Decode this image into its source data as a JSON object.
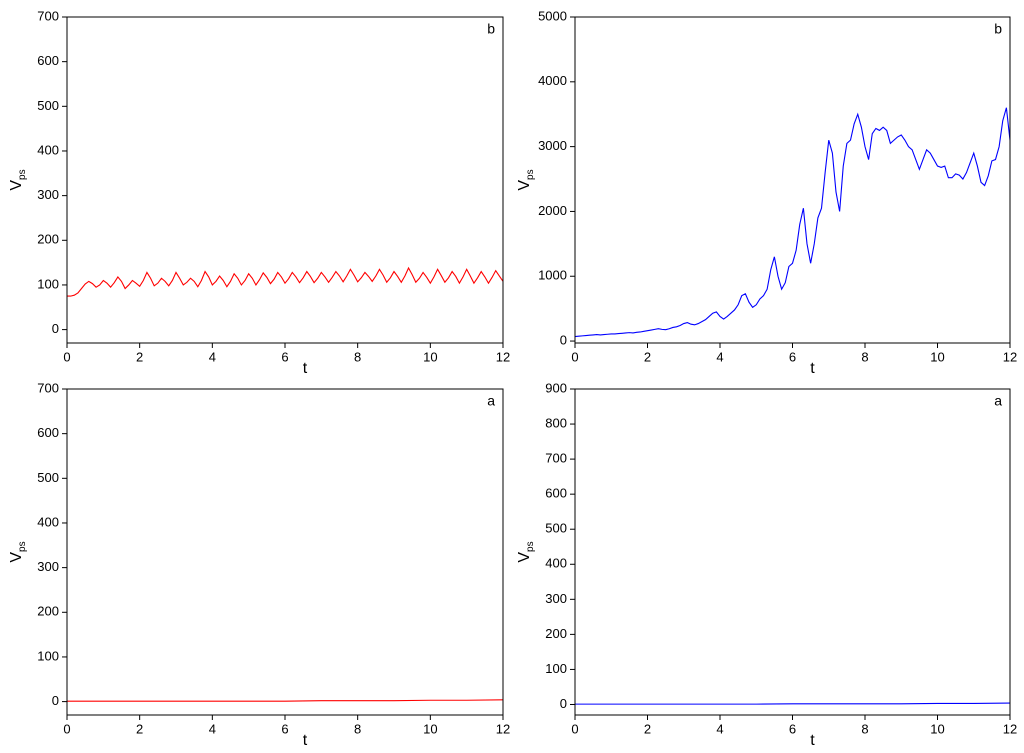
{
  "chart_data": [
    {
      "type": "line",
      "annotation": "b",
      "xlabel": "t",
      "ylabel": "V",
      "ylabel_subscript": "ps",
      "color": "#ff0000",
      "xlim": [
        0,
        12
      ],
      "xticks": [
        0,
        2,
        4,
        6,
        8,
        10,
        12
      ],
      "ylim": [
        -30,
        700
      ],
      "yticks": [
        0,
        100,
        200,
        300,
        400,
        500,
        600,
        700
      ],
      "x": [
        0,
        0.1,
        0.2,
        0.3,
        0.4,
        0.5,
        0.6,
        0.7,
        0.8,
        0.9,
        1,
        1.1,
        1.2,
        1.3,
        1.4,
        1.5,
        1.6,
        1.7,
        1.8,
        1.9,
        2,
        2.1,
        2.2,
        2.3,
        2.4,
        2.5,
        2.6,
        2.7,
        2.8,
        2.9,
        3,
        3.1,
        3.2,
        3.3,
        3.4,
        3.5,
        3.6,
        3.7,
        3.8,
        3.9,
        4,
        4.1,
        4.2,
        4.3,
        4.4,
        4.5,
        4.6,
        4.7,
        4.8,
        4.9,
        5,
        5.1,
        5.2,
        5.3,
        5.4,
        5.5,
        5.6,
        5.7,
        5.8,
        5.9,
        6,
        6.1,
        6.2,
        6.3,
        6.4,
        6.5,
        6.6,
        6.7,
        6.8,
        6.9,
        7,
        7.1,
        7.2,
        7.3,
        7.4,
        7.5,
        7.6,
        7.7,
        7.8,
        7.9,
        8,
        8.1,
        8.2,
        8.3,
        8.4,
        8.5,
        8.6,
        8.7,
        8.8,
        8.9,
        9,
        9.1,
        9.2,
        9.3,
        9.4,
        9.5,
        9.6,
        9.7,
        9.8,
        9.9,
        10,
        10.1,
        10.2,
        10.3,
        10.4,
        10.5,
        10.6,
        10.7,
        10.8,
        10.9,
        11,
        11.1,
        11.2,
        11.3,
        11.4,
        11.5,
        11.6,
        11.7,
        11.8,
        11.9,
        12
      ],
      "values": [
        75,
        75,
        77,
        82,
        92,
        102,
        108,
        103,
        95,
        100,
        110,
        104,
        95,
        105,
        118,
        108,
        92,
        100,
        110,
        104,
        97,
        110,
        128,
        115,
        98,
        104,
        115,
        108,
        98,
        110,
        128,
        115,
        100,
        106,
        115,
        108,
        96,
        110,
        130,
        118,
        100,
        108,
        120,
        110,
        96,
        108,
        125,
        115,
        100,
        110,
        125,
        115,
        100,
        112,
        127,
        117,
        103,
        113,
        128,
        118,
        104,
        114,
        128,
        118,
        105,
        116,
        130,
        119,
        105,
        115,
        128,
        118,
        106,
        117,
        130,
        120,
        107,
        120,
        135,
        122,
        107,
        116,
        128,
        119,
        108,
        120,
        135,
        122,
        106,
        116,
        130,
        119,
        106,
        120,
        138,
        123,
        106,
        115,
        128,
        117,
        104,
        118,
        135,
        121,
        106,
        116,
        130,
        119,
        104,
        118,
        135,
        120,
        104,
        116,
        130,
        118,
        104,
        117,
        132,
        120,
        108
      ]
    },
    {
      "type": "line",
      "annotation": "b",
      "xlabel": "t",
      "ylabel": "V",
      "ylabel_subscript": "ps",
      "color": "#0000ff",
      "xlim": [
        0,
        12
      ],
      "xticks": [
        0,
        2,
        4,
        6,
        8,
        10,
        12
      ],
      "ylim": [
        -30,
        5000
      ],
      "yticks": [
        0,
        1000,
        2000,
        3000,
        4000,
        5000
      ],
      "x": [
        0,
        0.1,
        0.2,
        0.3,
        0.4,
        0.5,
        0.6,
        0.7,
        0.8,
        0.9,
        1,
        1.1,
        1.2,
        1.3,
        1.4,
        1.5,
        1.6,
        1.7,
        1.8,
        1.9,
        2,
        2.1,
        2.2,
        2.3,
        2.4,
        2.5,
        2.6,
        2.7,
        2.8,
        2.9,
        3,
        3.1,
        3.2,
        3.3,
        3.4,
        3.5,
        3.6,
        3.7,
        3.8,
        3.9,
        4,
        4.1,
        4.2,
        4.3,
        4.4,
        4.5,
        4.6,
        4.7,
        4.8,
        4.9,
        5,
        5.1,
        5.2,
        5.3,
        5.4,
        5.5,
        5.6,
        5.7,
        5.8,
        5.9,
        6,
        6.1,
        6.2,
        6.3,
        6.4,
        6.5,
        6.6,
        6.7,
        6.8,
        6.9,
        7,
        7.1,
        7.2,
        7.3,
        7.4,
        7.5,
        7.6,
        7.7,
        7.8,
        7.9,
        8,
        8.1,
        8.2,
        8.3,
        8.4,
        8.5,
        8.6,
        8.7,
        8.8,
        8.9,
        9,
        9.1,
        9.2,
        9.3,
        9.4,
        9.5,
        9.6,
        9.7,
        9.8,
        9.9,
        10,
        10.1,
        10.2,
        10.3,
        10.4,
        10.5,
        10.6,
        10.7,
        10.8,
        10.9,
        11,
        11.1,
        11.2,
        11.3,
        11.4,
        11.5,
        11.6,
        11.7,
        11.8,
        11.9,
        12
      ],
      "values": [
        70,
        75,
        80,
        85,
        90,
        95,
        100,
        95,
        100,
        105,
        110,
        110,
        115,
        120,
        125,
        130,
        125,
        135,
        140,
        150,
        160,
        170,
        180,
        190,
        180,
        175,
        190,
        210,
        220,
        240,
        270,
        285,
        260,
        250,
        270,
        300,
        330,
        380,
        430,
        450,
        380,
        340,
        380,
        430,
        480,
        560,
        700,
        730,
        600,
        520,
        560,
        650,
        700,
        800,
        1100,
        1300,
        1000,
        800,
        900,
        1150,
        1200,
        1400,
        1800,
        2050,
        1500,
        1200,
        1500,
        1900,
        2050,
        2600,
        3100,
        2900,
        2300,
        2000,
        2700,
        3050,
        3100,
        3350,
        3500,
        3300,
        3000,
        2800,
        3200,
        3280,
        3250,
        3300,
        3250,
        3050,
        3100,
        3150,
        3180,
        3100,
        3000,
        2950,
        2800,
        2650,
        2800,
        2950,
        2900,
        2800,
        2700,
        2680,
        2700,
        2520,
        2520,
        2580,
        2560,
        2500,
        2600,
        2750,
        2900,
        2700,
        2450,
        2400,
        2550,
        2780,
        2800,
        3000,
        3400,
        3600,
        3100
      ]
    },
    {
      "type": "line",
      "annotation": "a",
      "xlabel": "t",
      "ylabel": "V",
      "ylabel_subscript": "ps",
      "color": "#ff0000",
      "xlim": [
        0,
        12
      ],
      "xticks": [
        0,
        2,
        4,
        6,
        8,
        10,
        12
      ],
      "ylim": [
        -30,
        700
      ],
      "yticks": [
        0,
        100,
        200,
        300,
        400,
        500,
        600,
        700
      ],
      "x": [
        0,
        1,
        2,
        3,
        4,
        5,
        6,
        7,
        8,
        9,
        10,
        11,
        12
      ],
      "values": [
        1,
        1,
        1,
        1,
        1,
        1,
        1,
        2,
        2,
        2,
        3,
        3,
        4
      ]
    },
    {
      "type": "line",
      "annotation": "a",
      "xlabel": "t",
      "ylabel": "V",
      "ylabel_subscript": "ps",
      "color": "#0000ff",
      "xlim": [
        0,
        12
      ],
      "xticks": [
        0,
        2,
        4,
        6,
        8,
        10,
        12
      ],
      "ylim": [
        -30,
        900
      ],
      "yticks": [
        0,
        100,
        200,
        300,
        400,
        500,
        600,
        700,
        800,
        900
      ],
      "x": [
        0,
        1,
        2,
        3,
        4,
        5,
        6,
        7,
        8,
        9,
        10,
        11,
        12
      ],
      "values": [
        1,
        1,
        1,
        1,
        1,
        1,
        2,
        2,
        2,
        2,
        3,
        3,
        4
      ]
    }
  ]
}
